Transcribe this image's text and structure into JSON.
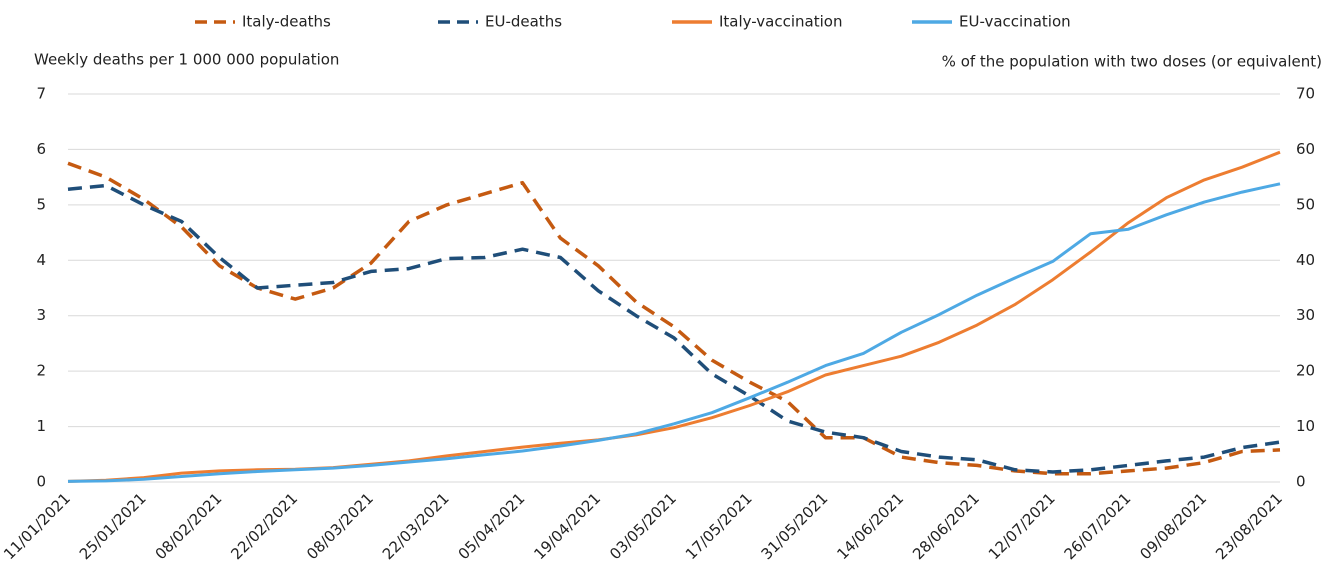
{
  "chart_data": {
    "type": "line",
    "y_label": "Weekly deaths per 1 000 000 population",
    "y2_label": "% of the population with two doses (or equivalent)",
    "categories": [
      "11/01/2021",
      null,
      "25/01/2021",
      null,
      "08/02/2021",
      null,
      "22/02/2021",
      null,
      "08/03/2021",
      null,
      "22/03/2021",
      null,
      "05/04/2021",
      null,
      "19/04/2021",
      null,
      "03/05/2021",
      null,
      "17/05/2021",
      null,
      "31/05/2021",
      null,
      "14/06/2021",
      null,
      "28/06/2021",
      null,
      "12/07/2021",
      null,
      "26/07/2021",
      null,
      "09/08/2021",
      null,
      "23/08/2021"
    ],
    "ylim": [
      0,
      7
    ],
    "yticks": [
      0,
      1,
      2,
      3,
      4,
      5,
      6,
      7
    ],
    "y2lim": [
      0,
      70
    ],
    "y2ticks": [
      0,
      10,
      20,
      30,
      40,
      50,
      60,
      70
    ],
    "grid": true,
    "legend": "top",
    "series": [
      {
        "name": "Italy-deaths",
        "color": "#c55a11",
        "line_style": "dashed",
        "axis": "y",
        "values": [
          5.75,
          5.5,
          5.1,
          4.6,
          3.9,
          3.5,
          3.3,
          3.5,
          3.95,
          4.7,
          5.0,
          5.2,
          5.4,
          4.4,
          3.9,
          3.25,
          2.8,
          2.2,
          1.8,
          1.45,
          0.8,
          0.8,
          0.45,
          0.35,
          0.3,
          0.2,
          0.15,
          0.15,
          0.2,
          0.25,
          0.35,
          0.55,
          0.58
        ]
      },
      {
        "name": "EU-deaths",
        "color": "#1f4e79",
        "line_style": "dashed",
        "axis": "y",
        "values": [
          5.28,
          5.35,
          5.0,
          4.7,
          4.05,
          3.5,
          3.55,
          3.6,
          3.8,
          3.85,
          4.03,
          4.05,
          4.2,
          4.05,
          3.45,
          3.0,
          2.6,
          1.95,
          1.55,
          1.1,
          0.9,
          0.8,
          0.55,
          0.45,
          0.4,
          0.22,
          0.18,
          0.22,
          0.3,
          0.38,
          0.45,
          0.62,
          0.72
        ]
      },
      {
        "name": "Italy-vaccination",
        "color": "#ed7d31",
        "line_style": "solid",
        "axis": "y2",
        "values": [
          0.1,
          0.3,
          0.8,
          1.6,
          2.0,
          2.2,
          2.3,
          2.6,
          3.2,
          3.8,
          4.7,
          5.5,
          6.3,
          7.0,
          7.6,
          8.5,
          9.8,
          11.6,
          13.8,
          16.3,
          19.3,
          21.0,
          22.7,
          25.2,
          28.3,
          32.0,
          36.5,
          41.5,
          46.8,
          51.3,
          54.5,
          56.8,
          59.5
        ]
      },
      {
        "name": "EU-vaccination",
        "color": "#4ea9e4",
        "line_style": "solid",
        "axis": "y2",
        "values": [
          0.1,
          0.2,
          0.5,
          1.0,
          1.5,
          1.9,
          2.2,
          2.5,
          3.0,
          3.6,
          4.2,
          4.9,
          5.6,
          6.5,
          7.5,
          8.7,
          10.5,
          12.5,
          15.2,
          18.0,
          21.0,
          23.2,
          27.0,
          30.2,
          33.7,
          36.8,
          39.8,
          44.8,
          45.6,
          48.2,
          50.5,
          52.3,
          53.8
        ]
      }
    ]
  }
}
